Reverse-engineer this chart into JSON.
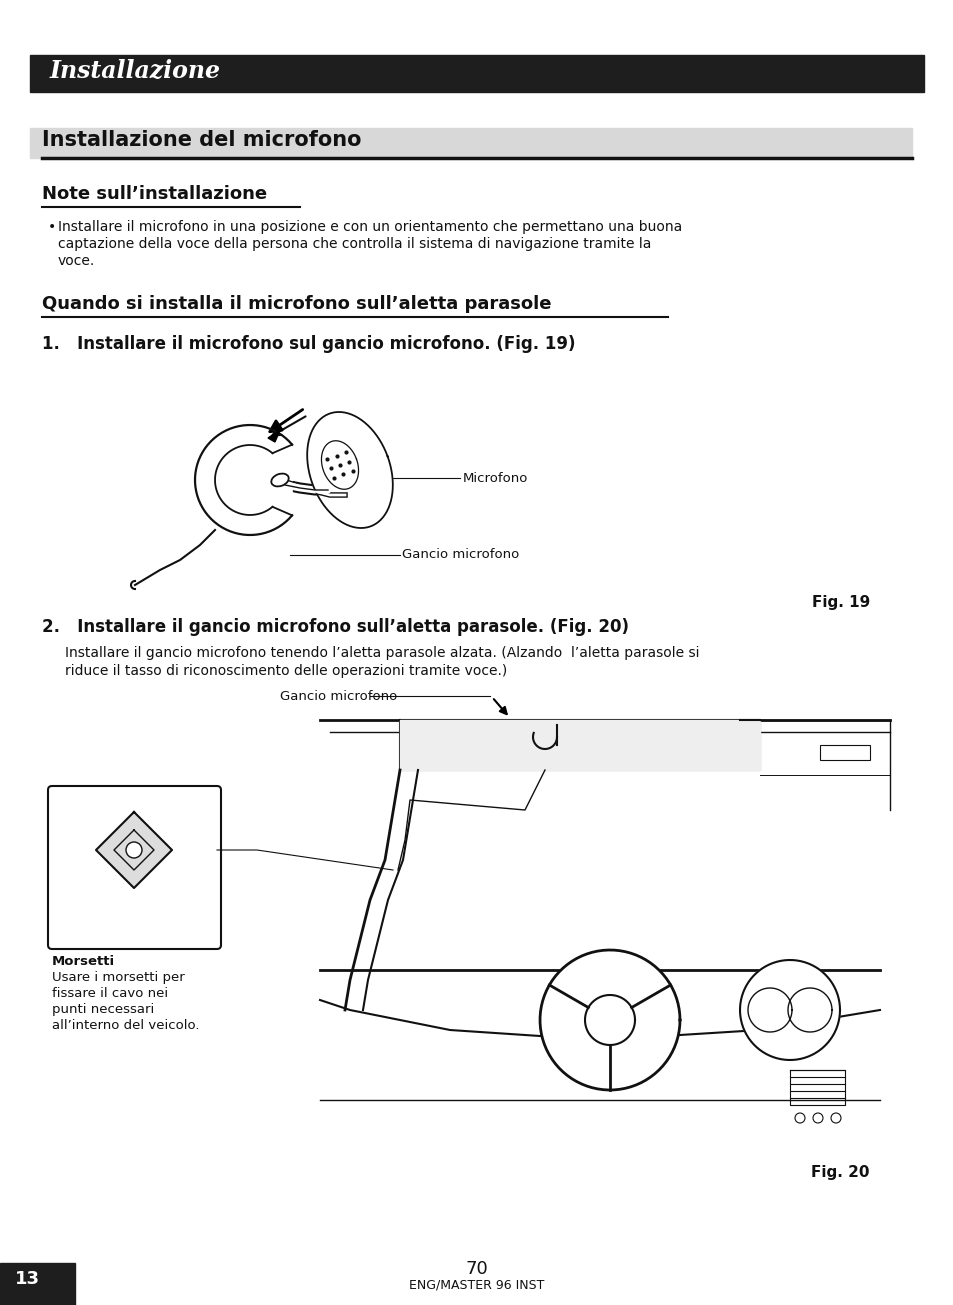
{
  "bg_color": "#ffffff",
  "header_bg": "#1e1e1e",
  "header_text": "Installazione",
  "header_text_color": "#ffffff",
  "section_title": "Installazione del microfono",
  "subsection1_title": "Note sull’installazione",
  "bullet_text_line1": "Installare il microfono in una posizione e con un orientamento che permettano una buona",
  "bullet_text_line2": "captazione della voce della persona che controlla il sistema di navigazione tramite la",
  "bullet_text_line3": "voce.",
  "subsection2_title": "Quando si installa il microfono sull’aletta parasole",
  "step1_title": "1.   Installare il microfono sul gancio microfono. (Fig. 19)",
  "fig19_label": "Fig. 19",
  "microfono_label": "Microfono",
  "gancio_label": "Gancio microfono",
  "step2_title": "2.   Installare il gancio microfono sull’aletta parasole. (Fig. 20)",
  "step2_body_line1": "Installare il gancio microfono tenendo l’aletta parasole alzata. (Alzando  l’aletta parasole si",
  "step2_body_line2": "riduce il tasso di riconoscimento delle operazioni tramite voce.)",
  "fig20_label": "Fig. 20",
  "gancio_label2": "Gancio microfono",
  "morsetti_line1": "Morsetti",
  "morsetti_line2": "Usare i morsetti per",
  "morsetti_line3": "fissare il cavo nei",
  "morsetti_line4": "punti necessari",
  "morsetti_line5": "all’interno del veicolo.",
  "page_num": "70",
  "page_sub": "ENG/MASTER 96 INST",
  "corner_label": "13",
  "corner_bg": "#1e1e1e",
  "corner_text_color": "#ffffff"
}
